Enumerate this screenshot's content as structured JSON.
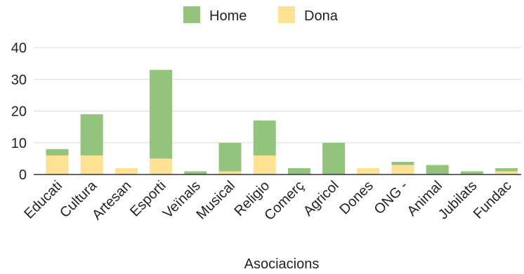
{
  "chart_data": {
    "type": "bar",
    "stacked": true,
    "categories": [
      "Educati",
      "Cultura",
      "Artesan",
      "Esporti",
      "Veïnals",
      "Musical",
      "Religio",
      "Comerç",
      "Agricol",
      "Dones",
      "ONG -",
      "Animal",
      "Jubilats",
      "Fundac"
    ],
    "series": [
      {
        "name": "Dona",
        "color": "#fde293",
        "values": [
          6,
          6,
          2,
          5,
          0,
          1,
          6,
          0,
          0,
          2,
          3,
          0,
          0,
          1
        ]
      },
      {
        "name": "Home",
        "color": "#93c47d",
        "values": [
          2,
          13,
          0,
          28,
          1,
          9,
          11,
          2,
          10,
          0,
          1,
          3,
          1,
          1
        ]
      }
    ],
    "legend": {
      "position": "top",
      "order": [
        "Home",
        "Dona"
      ]
    },
    "xlabel": "Asociacions",
    "ylabel": "",
    "ylim": [
      0,
      40
    ],
    "yticks": [
      0,
      10,
      20,
      30,
      40
    ],
    "grid": true
  }
}
